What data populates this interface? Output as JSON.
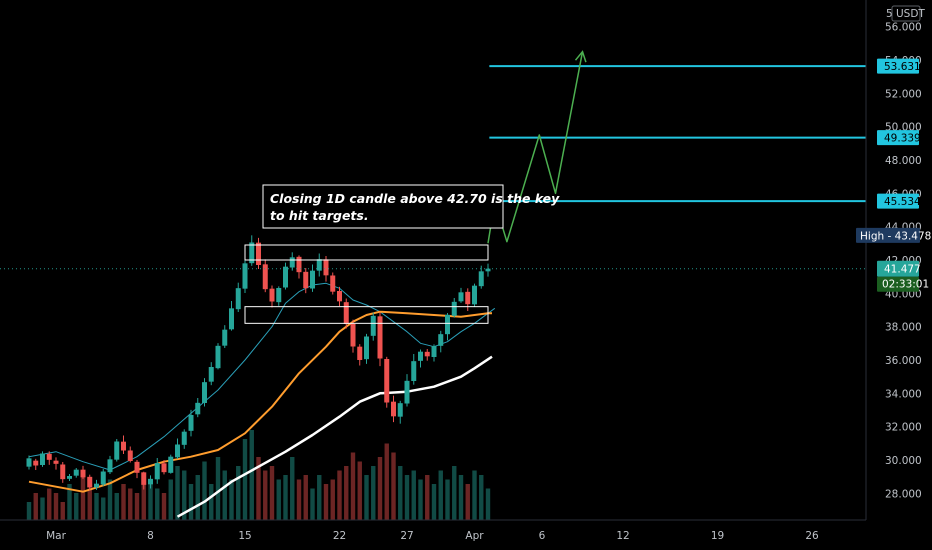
{
  "chart_data": {
    "type": "candlestick",
    "y_axis": {
      "currency": "USDT",
      "scale_label": "5",
      "ticks": [
        "56.000",
        "54.000",
        "52.000",
        "50.000",
        "48.000",
        "46.000",
        "44.000",
        "42.000",
        "40.000",
        "38.000",
        "36.000",
        "34.000",
        "32.000",
        "30.000",
        "28.000"
      ],
      "tick_values": [
        56,
        54,
        52,
        50,
        48,
        46,
        44,
        42,
        40,
        38,
        36,
        34,
        32,
        30,
        28
      ],
      "ylim": [
        26.4,
        57.6
      ]
    },
    "x_axis": {
      "ticks": [
        "Mar",
        "8",
        "15",
        "22",
        "27",
        "Apr",
        "6",
        "12",
        "19",
        "26"
      ],
      "tick_days": [
        0,
        7,
        14,
        21,
        26,
        31,
        36,
        42,
        49,
        56
      ]
    },
    "price_labels": {
      "targets": [
        "53.631",
        "49.339",
        "45.534"
      ],
      "target_values": [
        53.631,
        49.339,
        45.534
      ],
      "high_label": "High",
      "high_value": "43.478",
      "current_price": "41.477",
      "current_value": 41.477,
      "countdown": "02:33:01"
    },
    "annotation": {
      "lines": [
        "Closing 1D candle above 42.70 is the key",
        "to hit targets."
      ]
    },
    "zones": [
      {
        "from_day": 14,
        "to_day": 32,
        "low": 42.0,
        "high": 42.9
      },
      {
        "from_day": 14,
        "to_day": 32,
        "low": 38.2,
        "high": 39.2
      }
    ],
    "projection_path": [
      [
        32,
        43.0
      ],
      [
        32.5,
        45.5
      ],
      [
        33.4,
        43.1
      ],
      [
        35.8,
        49.5
      ],
      [
        37.0,
        46.0
      ],
      [
        39.0,
        54.5
      ]
    ],
    "target_lines_from_day": 32.1,
    "ma_fast": [
      [
        -2,
        30.2
      ],
      [
        0,
        30.5
      ],
      [
        2,
        29.9
      ],
      [
        4,
        29.4
      ],
      [
        6,
        30.2
      ],
      [
        8,
        31.4
      ],
      [
        10,
        32.8
      ],
      [
        12,
        34.2
      ],
      [
        14,
        36.0
      ],
      [
        16,
        38.0
      ],
      [
        17,
        39.4
      ],
      [
        18,
        40.1
      ],
      [
        19,
        40.5
      ],
      [
        20,
        40.6
      ],
      [
        21,
        40.3
      ],
      [
        22,
        39.6
      ],
      [
        23,
        39.3
      ],
      [
        24,
        38.9
      ],
      [
        25,
        38.3
      ],
      [
        26,
        37.7
      ],
      [
        27,
        37.0
      ],
      [
        28,
        36.8
      ],
      [
        29,
        37.1
      ],
      [
        30,
        37.7
      ],
      [
        31,
        38.2
      ],
      [
        32,
        38.8
      ],
      [
        32.5,
        39.1
      ]
    ],
    "ma_mid": [
      [
        -2,
        28.7
      ],
      [
        0,
        28.4
      ],
      [
        2,
        28.1
      ],
      [
        4,
        28.6
      ],
      [
        6,
        29.4
      ],
      [
        8,
        29.9
      ],
      [
        10,
        30.2
      ],
      [
        12,
        30.6
      ],
      [
        14,
        31.6
      ],
      [
        16,
        33.2
      ],
      [
        18,
        35.2
      ],
      [
        20,
        36.8
      ],
      [
        21,
        37.7
      ],
      [
        22,
        38.3
      ],
      [
        23,
        38.7
      ],
      [
        24,
        38.9
      ],
      [
        26,
        38.8
      ],
      [
        28,
        38.7
      ],
      [
        30,
        38.6
      ],
      [
        31,
        38.7
      ],
      [
        32,
        38.8
      ],
      [
        32.3,
        38.8
      ]
    ],
    "ma_slow": [
      [
        9,
        26.6
      ],
      [
        11,
        27.5
      ],
      [
        13,
        28.7
      ],
      [
        15,
        29.6
      ],
      [
        17,
        30.5
      ],
      [
        19,
        31.5
      ],
      [
        21,
        32.6
      ],
      [
        22.5,
        33.5
      ],
      [
        24,
        34.0
      ],
      [
        26,
        34.1
      ],
      [
        28,
        34.4
      ],
      [
        30,
        35.0
      ],
      [
        31,
        35.5
      ],
      [
        32.3,
        36.2
      ]
    ],
    "candles": [
      [
        -2.0,
        29.6,
        30.1,
        30.27,
        29.43
      ],
      [
        -1.5,
        29.96,
        29.67,
        30.07,
        29.4
      ],
      [
        -1.0,
        29.7,
        30.39,
        30.52,
        29.59
      ],
      [
        -0.5,
        30.37,
        30.01,
        30.52,
        29.71
      ],
      [
        0.0,
        29.96,
        29.77,
        30.16,
        29.42
      ],
      [
        0.5,
        29.73,
        28.85,
        29.88,
        28.63
      ],
      [
        1.0,
        28.87,
        29.04,
        29.16,
        28.74
      ],
      [
        1.5,
        29.06,
        29.42,
        29.52,
        28.94
      ],
      [
        2.0,
        29.42,
        28.96,
        29.65,
        28.87
      ],
      [
        2.5,
        28.99,
        28.35,
        29.12,
        28.17
      ],
      [
        3.0,
        28.35,
        28.58,
        28.81,
        28.21
      ],
      [
        3.5,
        28.53,
        29.31,
        29.46,
        28.43
      ],
      [
        4.0,
        29.27,
        30.04,
        30.25,
        29.16
      ],
      [
        4.5,
        30.02,
        31.11,
        31.26,
        29.91
      ],
      [
        5.0,
        31.1,
        30.57,
        31.47,
        30.36
      ],
      [
        5.5,
        30.57,
        29.94,
        30.81,
        29.85
      ],
      [
        6.0,
        29.89,
        29.23,
        30.0,
        28.91
      ],
      [
        6.5,
        29.26,
        28.51,
        29.3,
        28.23
      ],
      [
        7.0,
        28.54,
        28.87,
        29.08,
        28.29
      ],
      [
        7.5,
        28.84,
        29.82,
        30.12,
        28.57
      ],
      [
        8.0,
        29.8,
        29.27,
        29.99,
        29.14
      ],
      [
        8.5,
        29.23,
        30.2,
        30.32,
        29.18
      ],
      [
        9.0,
        30.16,
        30.93,
        31.29,
        30.07
      ],
      [
        9.5,
        30.91,
        31.7,
        31.84,
        30.67
      ],
      [
        10.0,
        31.75,
        32.7,
        33.01,
        31.42
      ],
      [
        10.5,
        32.74,
        33.43,
        33.72,
        32.57
      ],
      [
        11.0,
        33.42,
        34.67,
        34.91,
        33.21
      ],
      [
        11.5,
        34.7,
        35.58,
        35.87,
        34.49
      ],
      [
        12.0,
        35.51,
        36.85,
        37.01,
        35.44
      ],
      [
        12.5,
        36.86,
        37.82,
        38.09,
        36.72
      ],
      [
        13.0,
        37.84,
        39.1,
        39.54,
        37.76
      ],
      [
        13.5,
        39.05,
        40.31,
        40.64,
        38.88
      ],
      [
        14.0,
        40.28,
        41.8,
        42.1,
        40.02
      ],
      [
        14.5,
        41.81,
        43.05,
        43.48,
        41.65
      ],
      [
        15.0,
        43.04,
        41.7,
        43.33,
        41.46
      ],
      [
        15.5,
        41.74,
        40.25,
        42.04,
        40.07
      ],
      [
        16.0,
        40.28,
        39.51,
        40.47,
        39.15
      ],
      [
        16.5,
        39.47,
        40.32,
        40.42,
        39.25
      ],
      [
        17.0,
        40.35,
        41.6,
        41.84,
        40.23
      ],
      [
        17.5,
        41.55,
        42.16,
        42.46,
        41.36
      ],
      [
        18.0,
        42.19,
        41.27,
        42.28,
        40.89
      ],
      [
        18.5,
        41.29,
        40.31,
        41.52,
        40.01
      ],
      [
        19.0,
        40.29,
        41.36,
        41.73,
        40.09
      ],
      [
        19.5,
        41.36,
        42.05,
        42.39,
        41.01
      ],
      [
        20.0,
        42.04,
        41.08,
        42.24,
        40.7
      ],
      [
        20.5,
        41.07,
        40.1,
        41.25,
        39.93
      ],
      [
        21.0,
        40.14,
        39.52,
        40.39,
        39.23
      ],
      [
        21.5,
        39.47,
        38.16,
        39.69,
        37.89
      ],
      [
        22.0,
        38.17,
        36.81,
        38.42,
        36.44
      ],
      [
        22.5,
        36.8,
        36.0,
        36.95,
        35.67
      ],
      [
        23.0,
        36.05,
        37.41,
        37.57,
        35.77
      ],
      [
        23.5,
        37.45,
        38.65,
        38.85,
        37.16
      ],
      [
        24.0,
        38.62,
        36.09,
        38.86,
        35.63
      ],
      [
        24.5,
        36.06,
        33.45,
        36.19,
        33.14
      ],
      [
        25.0,
        33.5,
        32.62,
        33.86,
        32.27
      ],
      [
        25.5,
        32.6,
        33.41,
        33.55,
        32.18
      ],
      [
        26.0,
        33.39,
        34.75,
        35.15,
        33.21
      ],
      [
        26.5,
        34.74,
        35.93,
        36.36,
        34.52
      ],
      [
        27.0,
        35.95,
        36.5,
        36.63,
        35.55
      ],
      [
        27.5,
        36.49,
        36.22,
        36.66,
        35.96
      ],
      [
        28.0,
        36.18,
        36.84,
        36.94,
        35.91
      ],
      [
        28.5,
        36.85,
        37.55,
        37.75,
        36.46
      ],
      [
        29.0,
        37.55,
        38.71,
        38.82,
        37.18
      ],
      [
        29.5,
        38.65,
        39.49,
        39.72,
        38.54
      ],
      [
        30.0,
        39.52,
        40.06,
        40.33,
        39.43
      ],
      [
        30.5,
        40.09,
        39.35,
        40.3,
        38.94
      ],
      [
        31.0,
        39.34,
        40.46,
        40.58,
        39.19
      ],
      [
        31.5,
        40.43,
        41.32,
        41.66,
        40.28
      ],
      [
        32.0,
        41.32,
        41.48,
        41.78,
        41.0
      ]
    ],
    "volumes": [
      0.2,
      0.3,
      0.25,
      0.35,
      0.3,
      0.2,
      0.4,
      0.3,
      0.5,
      0.35,
      0.3,
      0.25,
      0.45,
      0.3,
      0.4,
      0.35,
      0.3,
      0.5,
      0.4,
      0.35,
      0.3,
      0.45,
      0.6,
      0.55,
      0.4,
      0.5,
      0.65,
      0.4,
      0.7,
      0.55,
      0.45,
      0.6,
      0.9,
      1.0,
      0.7,
      0.55,
      0.6,
      0.45,
      0.5,
      0.7,
      0.45,
      0.5,
      0.35,
      0.5,
      0.4,
      0.45,
      0.55,
      0.6,
      0.75,
      0.65,
      0.5,
      0.6,
      0.7,
      0.85,
      0.75,
      0.6,
      0.5,
      0.55,
      0.45,
      0.5,
      0.4,
      0.55,
      0.45,
      0.6,
      0.5,
      0.4,
      0.55,
      0.5,
      0.35
    ],
    "colors": {
      "bull": "#26a69a",
      "bear": "#ef5350",
      "target_line": "#22c6e0",
      "projection": "#4caf50",
      "ma_fast": "#2a9fb8",
      "ma_mid": "#ff9d2e",
      "ma_slow": "#ffffff",
      "target_tag": "#22c6e0",
      "high_tag": "#1e3a5f",
      "price_tag": "#26a69a",
      "countdown_tag": "#1b5e20"
    }
  }
}
